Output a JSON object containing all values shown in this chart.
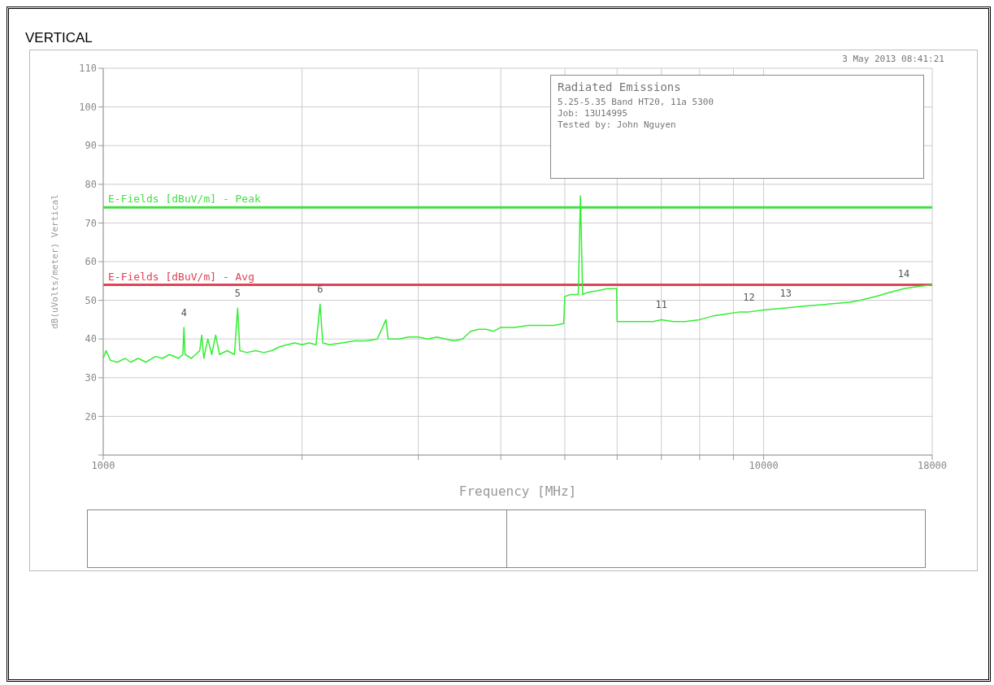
{
  "chart_data": {
    "type": "line",
    "title": "VERTICAL",
    "xlabel": "Frequency [MHz]",
    "ylabel": "dB(uVolts/meter) Vertical",
    "log": "x",
    "grid": true,
    "marker": "none",
    "line_style": "solid",
    "xlim": [
      1000,
      18000
    ],
    "xticks": [
      1000,
      {
        "value": 2000,
        "label": null
      },
      {
        "value": 3000,
        "label": null
      },
      {
        "value": 4000,
        "label": null
      },
      {
        "value": 5000,
        "label": null
      },
      {
        "value": 6000,
        "label": null
      },
      {
        "value": 7000,
        "label": null
      },
      {
        "value": 8000,
        "label": null
      },
      {
        "value": 9000,
        "label": null
      },
      10000,
      18000
    ],
    "ylim": [
      10,
      110
    ],
    "yticks": [
      {
        "value": 10,
        "label": null
      },
      20,
      30,
      40,
      50,
      60,
      70,
      80,
      90,
      100,
      110
    ],
    "x": [
      1000,
      1010,
      1025,
      1050,
      1080,
      1100,
      1130,
      1160,
      1200,
      1230,
      1260,
      1300,
      1320,
      1325,
      1330,
      1360,
      1400,
      1410,
      1420,
      1440,
      1460,
      1480,
      1500,
      1540,
      1580,
      1598,
      1610,
      1650,
      1700,
      1750,
      1800,
      1850,
      1900,
      1950,
      2000,
      2050,
      2100,
      2130,
      2150,
      2200,
      2300,
      2400,
      2500,
      2600,
      2680,
      2700,
      2800,
      2900,
      3000,
      3100,
      3200,
      3300,
      3400,
      3500,
      3600,
      3700,
      3800,
      3900,
      4000,
      4200,
      4400,
      4600,
      4800,
      4980,
      5000,
      5100,
      5200,
      5240,
      5280,
      5320,
      5400,
      5600,
      5800,
      5990,
      6000,
      6200,
      6500,
      6800,
      7000,
      7300,
      7600,
      8000,
      8400,
      8800,
      9200,
      9500,
      10000,
      10800,
      11500,
      12500,
      13500,
      14000,
      14800,
      15500,
      16300,
      17000,
      18000
    ],
    "series": [
      {
        "color": "#33ee33",
        "values": [
          35,
          37,
          34.5,
          34,
          35,
          34,
          35,
          34,
          35.5,
          35,
          36,
          35,
          36,
          43,
          36,
          35,
          37,
          41,
          35,
          40,
          36,
          41,
          36,
          37,
          36,
          48,
          37,
          36.5,
          37,
          36.5,
          37,
          38,
          38.5,
          39,
          38.5,
          39,
          38.5,
          49,
          39,
          38.5,
          39,
          39.5,
          39.5,
          40,
          45,
          40,
          40,
          40.5,
          40.5,
          40,
          40.5,
          40,
          39.5,
          40,
          42,
          42.5,
          42.5,
          42,
          43,
          43,
          43.5,
          43.5,
          43.5,
          44,
          51,
          51.5,
          51.5,
          51.5,
          77,
          51.5,
          52,
          52.5,
          53,
          53,
          44.5,
          44.5,
          44.5,
          44.5,
          45,
          44.5,
          44.5,
          45,
          46,
          46.5,
          47,
          47,
          47.5,
          48,
          48.5,
          49,
          49.5,
          50,
          51,
          52,
          53,
          53.5,
          54
        ]
      }
    ],
    "ref_lines": [
      {
        "axis": "y",
        "value": 74,
        "label": "E-Fields [dBuV/m] - Peak",
        "color": "#44dd44"
      },
      {
        "axis": "y",
        "value": 54,
        "label": "E-Fields [dBuV/m] - Avg",
        "color": "#dd4455"
      }
    ],
    "annotations": [
      "3 May 2013   08:41:21",
      "Radiated Emissions",
      "5.25-5.35 Band HT20, 11a 5300",
      "Job: 13U14995",
      "Tested by: John Nguyen",
      {
        "text": "4",
        "x": 1325,
        "y": 43
      },
      {
        "text": "5",
        "x": 1598,
        "y": 48
      },
      {
        "text": "6",
        "x": 2130,
        "y": 49
      },
      {
        "text": "11",
        "x": 7000,
        "y": 45
      },
      {
        "text": "12",
        "x": 9500,
        "y": 47
      },
      {
        "text": "13",
        "x": 10800,
        "y": 48
      },
      {
        "text": "14",
        "x": 16300,
        "y": 53
      }
    ]
  }
}
